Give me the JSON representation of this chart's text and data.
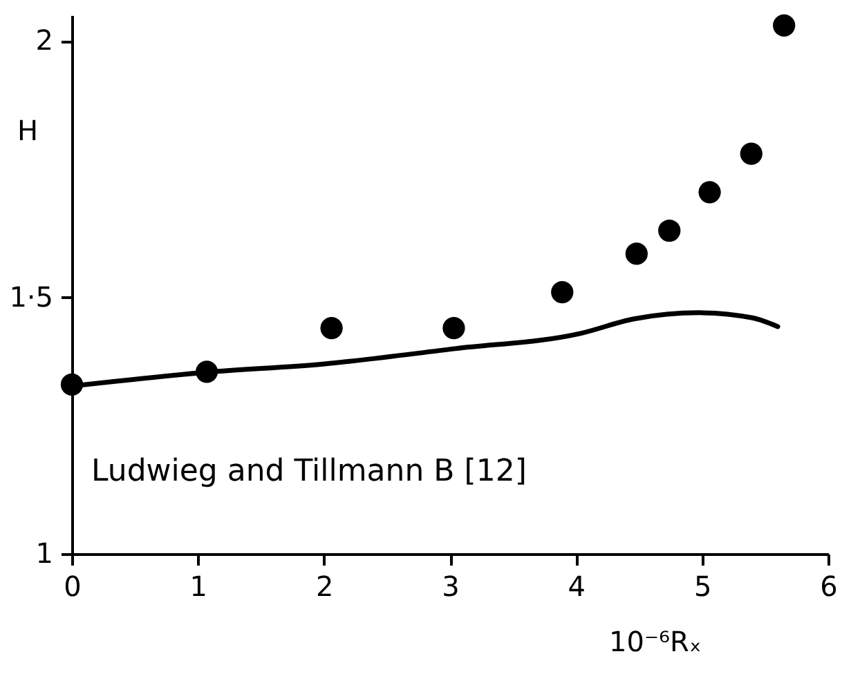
{
  "chart_data": {
    "type": "scatter",
    "xlabel": "10⁻⁶Rₓ",
    "ylabel": "H",
    "xlim": [
      0,
      6
    ],
    "xticks": [
      0,
      1,
      2,
      3,
      4,
      5,
      6
    ],
    "ylim": [
      1,
      2.05
    ],
    "yticks": [
      1,
      {
        "value": 1.5,
        "label": "1·5"
      },
      2
    ],
    "grid": false,
    "annotations": [
      "Ludwieg and Tillmann B [12]"
    ],
    "series": [
      {
        "marker": "circle",
        "color": "#000000",
        "x": [
          0,
          1.07,
          2.06,
          3.03,
          3.89,
          4.48,
          4.74,
          5.06,
          5.39,
          5.65
        ],
        "values": [
          1.33,
          1.355,
          1.44,
          1.44,
          1.51,
          1.585,
          1.63,
          1.705,
          1.78,
          2.03
        ]
      },
      {
        "type": "line",
        "line_style": "solid",
        "color": "#000000",
        "x": [
          0,
          1.07,
          1.99,
          3.04,
          4.04,
          4.46,
          4.98,
          5.4,
          5.6
        ],
        "values": [
          1.327,
          1.354,
          1.37,
          1.4,
          1.43,
          1.458,
          1.47,
          1.46,
          1.443
        ]
      }
    ]
  }
}
